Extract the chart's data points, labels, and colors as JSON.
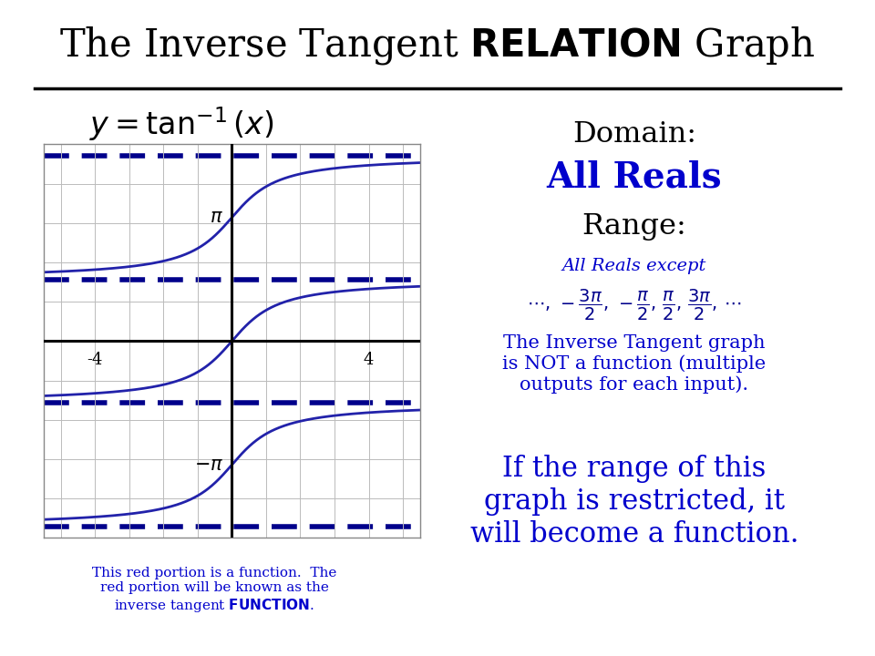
{
  "bg_color": "#ffffff",
  "header_bg": "#7a7a7a",
  "curve_color": "#2222aa",
  "dash_color": "#00008b",
  "xlim": [
    -5.5,
    5.5
  ],
  "ylim": [
    -4.8,
    4.8
  ],
  "x_ticks": [
    -4,
    4
  ],
  "pi": 3.14159265358979,
  "blue_color": "#0000cc",
  "dark_blue": "#00008b",
  "bottom_text_color": "#0000cc"
}
